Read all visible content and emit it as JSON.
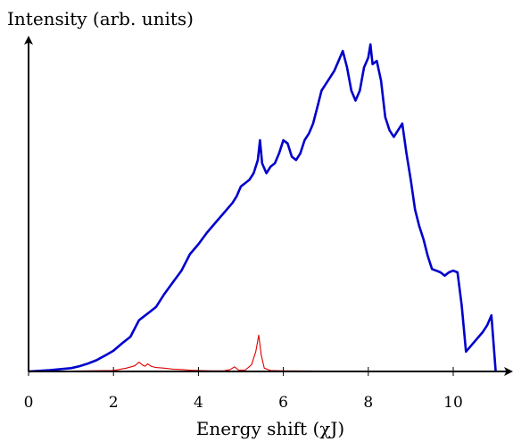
{
  "chart_data": {
    "type": "line",
    "title": "",
    "xlabel": "Energy shift (χJ)",
    "ylabel": "Intensity (arb. units)",
    "xlim": [
      0,
      11.3
    ],
    "ylim": [
      0,
      1.0
    ],
    "xticks": [
      "0",
      "2",
      "4",
      "6",
      "8",
      "10"
    ],
    "xtick_values": [
      0,
      2,
      4,
      6,
      8,
      10
    ],
    "grid": false,
    "legend": "none",
    "series": [
      {
        "color": "#0000cc",
        "x": [
          0.0,
          0.5,
          1.0,
          1.2,
          1.4,
          1.6,
          1.8,
          2.0,
          2.2,
          2.4,
          2.6,
          2.8,
          3.0,
          3.2,
          3.4,
          3.6,
          3.8,
          4.0,
          4.2,
          4.4,
          4.6,
          4.8,
          4.9,
          5.0,
          5.1,
          5.2,
          5.3,
          5.4,
          5.45,
          5.5,
          5.6,
          5.7,
          5.8,
          5.9,
          6.0,
          6.1,
          6.2,
          6.3,
          6.4,
          6.5,
          6.6,
          6.7,
          6.8,
          6.9,
          7.0,
          7.1,
          7.2,
          7.3,
          7.4,
          7.5,
          7.6,
          7.7,
          7.8,
          7.9,
          8.0,
          8.05,
          8.1,
          8.2,
          8.3,
          8.4,
          8.5,
          8.6,
          8.7,
          8.8,
          8.9,
          9.0,
          9.1,
          9.2,
          9.3,
          9.4,
          9.5,
          9.6,
          9.7,
          9.8,
          9.9,
          10.0,
          10.1,
          10.2,
          10.3,
          10.4,
          10.5,
          10.6,
          10.7,
          10.8,
          10.9,
          11.0
        ],
        "y": [
          0.0,
          0.004,
          0.01,
          0.016,
          0.024,
          0.034,
          0.048,
          0.063,
          0.085,
          0.105,
          0.155,
          0.175,
          0.195,
          0.235,
          0.27,
          0.305,
          0.355,
          0.385,
          0.42,
          0.45,
          0.48,
          0.51,
          0.53,
          0.56,
          0.57,
          0.58,
          0.6,
          0.64,
          0.7,
          0.63,
          0.6,
          0.62,
          0.63,
          0.66,
          0.7,
          0.69,
          0.65,
          0.64,
          0.66,
          0.7,
          0.72,
          0.75,
          0.8,
          0.85,
          0.87,
          0.89,
          0.91,
          0.94,
          0.97,
          0.92,
          0.85,
          0.82,
          0.85,
          0.92,
          0.95,
          0.99,
          0.93,
          0.94,
          0.88,
          0.77,
          0.73,
          0.71,
          0.73,
          0.75,
          0.66,
          0.58,
          0.49,
          0.44,
          0.4,
          0.35,
          0.31,
          0.305,
          0.3,
          0.29,
          0.3,
          0.305,
          0.3,
          0.2,
          0.06,
          0.075,
          0.09,
          0.105,
          0.12,
          0.14,
          0.17,
          0.0
        ]
      },
      {
        "color": "#dd0000",
        "x": [
          0.0,
          1.0,
          2.0,
          2.3,
          2.5,
          2.6,
          2.7,
          2.75,
          2.8,
          2.9,
          3.0,
          3.2,
          3.4,
          3.6,
          3.8,
          4.0,
          4.3,
          4.6,
          4.75,
          4.85,
          4.95,
          5.1,
          5.25,
          5.35,
          5.42,
          5.48,
          5.55,
          5.7,
          6.0,
          7.0,
          8.0,
          9.0,
          10.0,
          11.0
        ],
        "y": [
          0.0,
          0.001,
          0.003,
          0.01,
          0.017,
          0.028,
          0.018,
          0.016,
          0.023,
          0.015,
          0.012,
          0.01,
          0.007,
          0.006,
          0.004,
          0.003,
          0.002,
          0.002,
          0.006,
          0.014,
          0.004,
          0.004,
          0.02,
          0.06,
          0.11,
          0.05,
          0.01,
          0.003,
          0.002,
          0.001,
          0.001,
          0.001,
          0.001,
          0.001
        ]
      }
    ]
  }
}
